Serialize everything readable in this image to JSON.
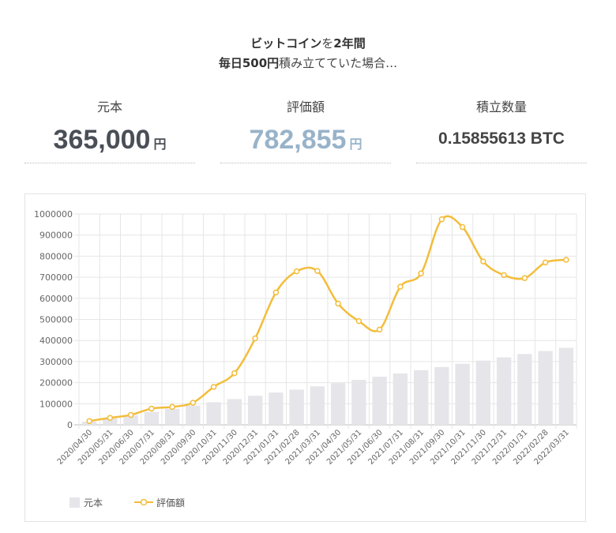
{
  "headline": {
    "line1_bold1": "ビットコイン",
    "line1_normal": "を",
    "line1_bold2": "2年間",
    "line2_bold": "毎日500円",
    "line2_normal": "積み立てていた場合…"
  },
  "stats": {
    "principal": {
      "label": "元本",
      "value": "365,000",
      "unit": "円"
    },
    "valuation": {
      "label": "評価額",
      "value": "782,855",
      "unit": "円"
    },
    "quantity": {
      "label": "積立数量",
      "value": "0.15855613 BTC"
    }
  },
  "colors": {
    "principal_bar": "#e5e5ea",
    "valuation_line": "#f3bd3b",
    "principal_text": "#4a4f57",
    "valuation_text": "#98b3c9"
  },
  "chart_data": {
    "type": "bar",
    "categories": [
      "2020/04/30",
      "2020/05/31",
      "2020/06/30",
      "2020/07/31",
      "2020/08/31",
      "2020/09/30",
      "2020/10/31",
      "2020/11/30",
      "2020/12/31",
      "2021/01/31",
      "2021/02/28",
      "2021/03/31",
      "2021/04/30",
      "2021/05/31",
      "2021/06/30",
      "2021/07/31",
      "2021/08/31",
      "2021/09/30",
      "2021/10/31",
      "2021/11/30",
      "2021/12/31",
      "2022/01/31",
      "2022/02/28",
      "2022/03/31"
    ],
    "series": [
      {
        "name": "元本",
        "type": "bar",
        "values": [
          15000,
          30500,
          45500,
          61000,
          76500,
          91500,
          107000,
          122000,
          137500,
          153000,
          167000,
          182500,
          197500,
          213000,
          228000,
          243500,
          259000,
          274000,
          289500,
          304500,
          320000,
          335500,
          349500,
          365000
        ]
      },
      {
        "name": "評価額",
        "type": "line",
        "values": [
          18000,
          33000,
          47000,
          77000,
          85000,
          105000,
          180000,
          245000,
          410000,
          628000,
          728000,
          730000,
          575000,
          492000,
          452000,
          655000,
          718000,
          975000,
          938000,
          775000,
          710000,
          696000,
          770000,
          782855
        ]
      }
    ],
    "ylim": [
      0,
      1000000
    ],
    "yticks": [
      "0",
      "100000",
      "200000",
      "300000",
      "400000",
      "500000",
      "600000",
      "700000",
      "800000",
      "900000",
      "1000000"
    ],
    "grid": true,
    "legend": "bottom-left"
  }
}
